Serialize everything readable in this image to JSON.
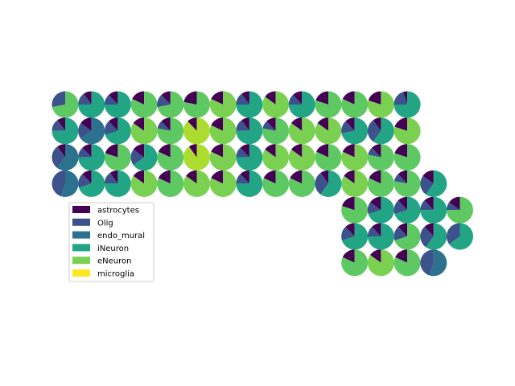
{
  "chart_data": {
    "type": "pie",
    "title": "",
    "xlabel": "",
    "ylabel": "",
    "grid": false,
    "axes_visible": false,
    "legend_placement": "lower-left",
    "categories": [
      "astrocytes",
      "Olig",
      "endo_mural",
      "iNeuron",
      "eNeuron",
      "microglia"
    ],
    "colors": {
      "astrocytes": "#440154",
      "Olig": "#3b528b",
      "endo_mural": "#2c728e",
      "iNeuron": "#21a585",
      "eNeuron": "#7ad151",
      "microglia": "#fde725",
      "mixed_light_green": "#5ec962",
      "yellow_green": "#addc30"
    },
    "spots": [
      {
        "col": 0,
        "row": 0,
        "colors": [
          "#3b528b",
          "#5ec962"
        ],
        "values": [
          0.28,
          0.72
        ]
      },
      {
        "col": 1,
        "row": 0,
        "colors": [
          "#440154",
          "#3b528b",
          "#21a585"
        ],
        "values": [
          0.1,
          0.15,
          0.75
        ]
      },
      {
        "col": 2,
        "row": 0,
        "colors": [
          "#440154",
          "#3b528b",
          "#21a585"
        ],
        "values": [
          0.12,
          0.13,
          0.75
        ]
      },
      {
        "col": 3,
        "row": 0,
        "colors": [
          "#440154",
          "#5ec962"
        ],
        "values": [
          0.18,
          0.82
        ]
      },
      {
        "col": 4,
        "row": 0,
        "colors": [
          "#440154",
          "#3b528b",
          "#5ec962"
        ],
        "values": [
          0.12,
          0.16,
          0.72
        ]
      },
      {
        "col": 5,
        "row": 0,
        "colors": [
          "#440154",
          "#5ec962"
        ],
        "values": [
          0.22,
          0.78
        ]
      },
      {
        "col": 6,
        "row": 0,
        "colors": [
          "#440154",
          "#7ad151"
        ],
        "values": [
          0.18,
          0.82
        ]
      },
      {
        "col": 7,
        "row": 0,
        "colors": [
          "#440154",
          "#3b528b",
          "#21a585"
        ],
        "values": [
          0.1,
          0.15,
          0.75
        ]
      },
      {
        "col": 8,
        "row": 0,
        "colors": [
          "#440154",
          "#7ad151"
        ],
        "values": [
          0.15,
          0.85
        ]
      },
      {
        "col": 9,
        "row": 0,
        "colors": [
          "#440154",
          "#3b528b",
          "#21a585"
        ],
        "values": [
          0.12,
          0.13,
          0.75
        ]
      },
      {
        "col": 10,
        "row": 0,
        "colors": [
          "#440154",
          "#5ec962"
        ],
        "values": [
          0.2,
          0.8
        ]
      },
      {
        "col": 11,
        "row": 0,
        "colors": [
          "#440154",
          "#5ec962"
        ],
        "values": [
          0.18,
          0.82
        ]
      },
      {
        "col": 12,
        "row": 0,
        "colors": [
          "#440154",
          "#7ad151"
        ],
        "values": [
          0.2,
          0.8
        ]
      },
      {
        "col": 13,
        "row": 0,
        "colors": [
          "#440154",
          "#3b528b",
          "#21a585"
        ],
        "values": [
          0.05,
          0.2,
          0.75
        ]
      },
      {
        "col": 0,
        "row": 1,
        "colors": [
          "#440154",
          "#3b528b",
          "#21a585"
        ],
        "values": [
          0.1,
          0.15,
          0.75
        ]
      },
      {
        "col": 1,
        "row": 1,
        "colors": [
          "#440154",
          "#3b528b",
          "#2c728e"
        ],
        "values": [
          0.15,
          0.2,
          0.65
        ]
      },
      {
        "col": 2,
        "row": 1,
        "colors": [
          "#440154",
          "#3b528b",
          "#21a585"
        ],
        "values": [
          0.12,
          0.18,
          0.7
        ]
      },
      {
        "col": 3,
        "row": 1,
        "colors": [
          "#440154",
          "#7ad151"
        ],
        "values": [
          0.15,
          0.85
        ]
      },
      {
        "col": 4,
        "row": 1,
        "colors": [
          "#440154",
          "#3b528b",
          "#5ec962"
        ],
        "values": [
          0.12,
          0.1,
          0.78
        ]
      },
      {
        "col": 5,
        "row": 1,
        "colors": [
          "#440154",
          "#addc30"
        ],
        "values": [
          0.12,
          0.88
        ]
      },
      {
        "col": 6,
        "row": 1,
        "colors": [
          "#440154",
          "#7ad151"
        ],
        "values": [
          0.18,
          0.82
        ]
      },
      {
        "col": 7,
        "row": 1,
        "colors": [
          "#440154",
          "#3b528b",
          "#21a585"
        ],
        "values": [
          0.1,
          0.15,
          0.75
        ]
      },
      {
        "col": 8,
        "row": 1,
        "colors": [
          "#440154",
          "#3b528b",
          "#5ec962"
        ],
        "values": [
          0.12,
          0.1,
          0.78
        ]
      },
      {
        "col": 9,
        "row": 1,
        "colors": [
          "#440154",
          "#7ad151"
        ],
        "values": [
          0.15,
          0.85
        ]
      },
      {
        "col": 10,
        "row": 1,
        "colors": [
          "#440154",
          "#7ad151"
        ],
        "values": [
          0.15,
          0.85
        ]
      },
      {
        "col": 11,
        "row": 1,
        "colors": [
          "#440154",
          "#3b528b",
          "#21a585"
        ],
        "values": [
          0.12,
          0.16,
          0.72
        ]
      },
      {
        "col": 12,
        "row": 1,
        "colors": [
          "#440154",
          "#3b528b",
          "#21a585"
        ],
        "values": [
          0.1,
          0.3,
          0.6
        ]
      },
      {
        "col": 13,
        "row": 1,
        "colors": [
          "#440154",
          "#7ad151"
        ],
        "values": [
          0.2,
          0.8
        ]
      },
      {
        "col": 0,
        "row": 2,
        "colors": [
          "#440154",
          "#3b528b",
          "#2c728e"
        ],
        "values": [
          0.1,
          0.3,
          0.6
        ]
      },
      {
        "col": 1,
        "row": 2,
        "colors": [
          "#440154",
          "#3b528b",
          "#21a585"
        ],
        "values": [
          0.12,
          0.13,
          0.75
        ]
      },
      {
        "col": 2,
        "row": 2,
        "colors": [
          "#440154",
          "#5ec962"
        ],
        "values": [
          0.2,
          0.8
        ]
      },
      {
        "col": 3,
        "row": 2,
        "colors": [
          "#440154",
          "#3b528b",
          "#21a585"
        ],
        "values": [
          0.15,
          0.2,
          0.65
        ]
      },
      {
        "col": 4,
        "row": 2,
        "colors": [
          "#440154",
          "#5ec962"
        ],
        "values": [
          0.18,
          0.82
        ]
      },
      {
        "col": 5,
        "row": 2,
        "colors": [
          "#440154",
          "#addc30"
        ],
        "values": [
          0.1,
          0.9
        ]
      },
      {
        "col": 6,
        "row": 2,
        "colors": [
          "#440154",
          "#7ad151"
        ],
        "values": [
          0.18,
          0.82
        ]
      },
      {
        "col": 7,
        "row": 2,
        "colors": [
          "#440154",
          "#3b528b",
          "#21a585"
        ],
        "values": [
          0.12,
          0.13,
          0.75
        ]
      },
      {
        "col": 8,
        "row": 2,
        "colors": [
          "#440154",
          "#7ad151"
        ],
        "values": [
          0.15,
          0.85
        ]
      },
      {
        "col": 9,
        "row": 2,
        "colors": [
          "#440154",
          "#7ad151"
        ],
        "values": [
          0.15,
          0.85
        ]
      },
      {
        "col": 10,
        "row": 2,
        "colors": [
          "#440154",
          "#5ec962"
        ],
        "values": [
          0.18,
          0.82
        ]
      },
      {
        "col": 11,
        "row": 2,
        "colors": [
          "#440154",
          "#7ad151"
        ],
        "values": [
          0.18,
          0.82
        ]
      },
      {
        "col": 12,
        "row": 2,
        "colors": [
          "#440154",
          "#3b528b",
          "#5ec962"
        ],
        "values": [
          0.12,
          0.1,
          0.78
        ]
      },
      {
        "col": 13,
        "row": 2,
        "colors": [
          "#440154",
          "#5ec962"
        ],
        "values": [
          0.2,
          0.8
        ]
      },
      {
        "col": 0,
        "row": 3,
        "colors": [
          "#3b528b",
          "#2c728e"
        ],
        "values": [
          0.45,
          0.55
        ]
      },
      {
        "col": 1,
        "row": 3,
        "colors": [
          "#440154",
          "#3b528b",
          "#21a585"
        ],
        "values": [
          0.12,
          0.18,
          0.7
        ]
      },
      {
        "col": 2,
        "row": 3,
        "colors": [
          "#440154",
          "#3b528b",
          "#21a585"
        ],
        "values": [
          0.1,
          0.15,
          0.75
        ]
      },
      {
        "col": 3,
        "row": 3,
        "colors": [
          "#440154",
          "#7ad151"
        ],
        "values": [
          0.15,
          0.85
        ]
      },
      {
        "col": 4,
        "row": 3,
        "colors": [
          "#440154",
          "#5ec962"
        ],
        "values": [
          0.18,
          0.82
        ]
      },
      {
        "col": 5,
        "row": 3,
        "colors": [
          "#440154",
          "#7ad151"
        ],
        "values": [
          0.15,
          0.85
        ]
      },
      {
        "col": 6,
        "row": 3,
        "colors": [
          "#440154",
          "#7ad151"
        ],
        "values": [
          0.18,
          0.82
        ]
      },
      {
        "col": 7,
        "row": 3,
        "colors": [
          "#440154",
          "#3b528b",
          "#21a585"
        ],
        "values": [
          0.12,
          0.13,
          0.75
        ]
      },
      {
        "col": 8,
        "row": 3,
        "colors": [
          "#440154",
          "#5ec962"
        ],
        "values": [
          0.18,
          0.82
        ]
      },
      {
        "col": 9,
        "row": 3,
        "colors": [
          "#440154",
          "#5ec962"
        ],
        "values": [
          0.18,
          0.82
        ]
      },
      {
        "col": 10,
        "row": 3,
        "colors": [
          "#440154",
          "#3b528b",
          "#21a585"
        ],
        "values": [
          0.1,
          0.3,
          0.6
        ]
      },
      {
        "col": 11,
        "row": 3,
        "colors": [
          "#440154",
          "#7ad151"
        ],
        "values": [
          0.15,
          0.85
        ]
      },
      {
        "col": 12,
        "row": 3,
        "colors": [
          "#440154",
          "#5ec962"
        ],
        "values": [
          0.18,
          0.82
        ]
      },
      {
        "col": 13,
        "row": 3,
        "colors": [
          "#440154",
          "#3b528b",
          "#5ec962"
        ],
        "values": [
          0.12,
          0.1,
          0.78
        ]
      },
      {
        "col": 14,
        "row": 3,
        "colors": [
          "#440154",
          "#3b528b",
          "#21a585"
        ],
        "values": [
          0.15,
          0.25,
          0.6
        ]
      },
      {
        "col": 11,
        "row": 4,
        "colors": [
          "#440154",
          "#5ec962"
        ],
        "values": [
          0.2,
          0.8
        ]
      },
      {
        "col": 12,
        "row": 4,
        "colors": [
          "#440154",
          "#3b528b",
          "#21a585"
        ],
        "values": [
          0.15,
          0.15,
          0.7
        ]
      },
      {
        "col": 13,
        "row": 4,
        "colors": [
          "#440154",
          "#3b528b",
          "#21a585"
        ],
        "values": [
          0.12,
          0.18,
          0.7
        ]
      },
      {
        "col": 14,
        "row": 4,
        "colors": [
          "#440154",
          "#3b528b",
          "#21a585"
        ],
        "values": [
          0.12,
          0.13,
          0.75
        ]
      },
      {
        "col": 15,
        "row": 4,
        "colors": [
          "#440154",
          "#3b528b",
          "#5ec962"
        ],
        "values": [
          0.15,
          0.1,
          0.75
        ]
      },
      {
        "col": 11,
        "row": 5,
        "colors": [
          "#440154",
          "#3b528b",
          "#21a585"
        ],
        "values": [
          0.12,
          0.18,
          0.7
        ]
      },
      {
        "col": 12,
        "row": 5,
        "colors": [
          "#440154",
          "#3b528b",
          "#21a585"
        ],
        "values": [
          0.12,
          0.13,
          0.75
        ]
      },
      {
        "col": 13,
        "row": 5,
        "colors": [
          "#440154",
          "#3b528b",
          "#5ec962"
        ],
        "values": [
          0.12,
          0.18,
          0.7
        ]
      },
      {
        "col": 14,
        "row": 5,
        "colors": [
          "#440154",
          "#3b528b",
          "#21a585"
        ],
        "values": [
          0.12,
          0.28,
          0.6
        ]
      },
      {
        "col": 15,
        "row": 5,
        "colors": [
          "#3b528b",
          "#21a585"
        ],
        "values": [
          0.35,
          0.65
        ]
      },
      {
        "col": 11,
        "row": 6,
        "colors": [
          "#440154",
          "#5ec962"
        ],
        "values": [
          0.18,
          0.82
        ]
      },
      {
        "col": 12,
        "row": 6,
        "colors": [
          "#440154",
          "#7ad151"
        ],
        "values": [
          0.15,
          0.85
        ]
      },
      {
        "col": 13,
        "row": 6,
        "colors": [
          "#440154",
          "#5ec962"
        ],
        "values": [
          0.18,
          0.82
        ]
      },
      {
        "col": 14,
        "row": 6,
        "colors": [
          "#3b528b",
          "#2c728e"
        ],
        "values": [
          0.45,
          0.55
        ]
      }
    ]
  }
}
